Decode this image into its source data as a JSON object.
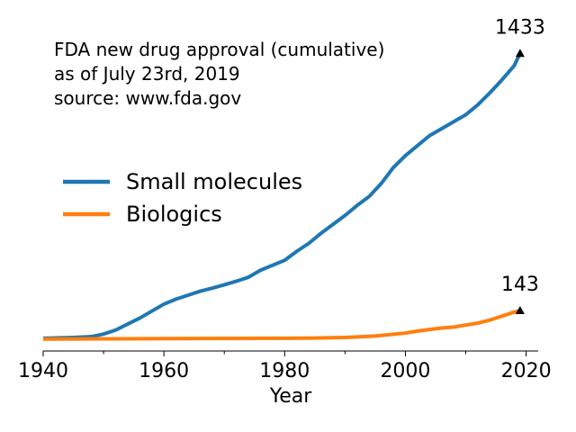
{
  "chart_data": {
    "type": "line",
    "title_lines": [
      "FDA new drug approval (cumulative)",
      "as of July 23rd, 2019",
      "source: www.fda.gov"
    ],
    "xlabel": "Year",
    "ylabel": "",
    "xlim": [
      1940,
      2022
    ],
    "ylim": [
      -60,
      1520
    ],
    "x_ticks": [
      1940,
      1960,
      1980,
      2000,
      2020
    ],
    "legend_position": "center-left",
    "grid": false,
    "series": [
      {
        "name": "Small molecules",
        "color": "#1f77b4",
        "x": [
          1940,
          1945,
          1948,
          1950,
          1952,
          1954,
          1956,
          1958,
          1960,
          1962,
          1964,
          1966,
          1968,
          1970,
          1972,
          1974,
          1976,
          1978,
          1980,
          1982,
          1984,
          1986,
          1988,
          1990,
          1992,
          1994,
          1996,
          1998,
          2000,
          2002,
          2004,
          2006,
          2008,
          2010,
          2012,
          2014,
          2016,
          2018,
          2019
        ],
        "y": [
          4,
          8,
          12,
          25,
          45,
          75,
          105,
          140,
          175,
          200,
          220,
          240,
          255,
          272,
          290,
          310,
          345,
          370,
          395,
          440,
          480,
          530,
          575,
          620,
          670,
          715,
          780,
          860,
          920,
          970,
          1020,
          1055,
          1090,
          1125,
          1175,
          1235,
          1300,
          1370,
          1433
        ]
      },
      {
        "name": "Biologics",
        "color": "#ff7f0e",
        "x": [
          1940,
          1950,
          1960,
          1970,
          1980,
          1985,
          1990,
          1995,
          2000,
          2002,
          2004,
          2006,
          2008,
          2010,
          2012,
          2014,
          2016,
          2018,
          2019
        ],
        "y": [
          0,
          1,
          2,
          3,
          4,
          5,
          8,
          15,
          30,
          40,
          48,
          55,
          60,
          70,
          80,
          95,
          115,
          135,
          143
        ]
      }
    ],
    "annotations": [
      {
        "text": "1433",
        "x": 2019,
        "y": 1433,
        "series": "Small molecules"
      },
      {
        "text": "143",
        "x": 2019,
        "y": 143,
        "series": "Biologics"
      }
    ]
  }
}
